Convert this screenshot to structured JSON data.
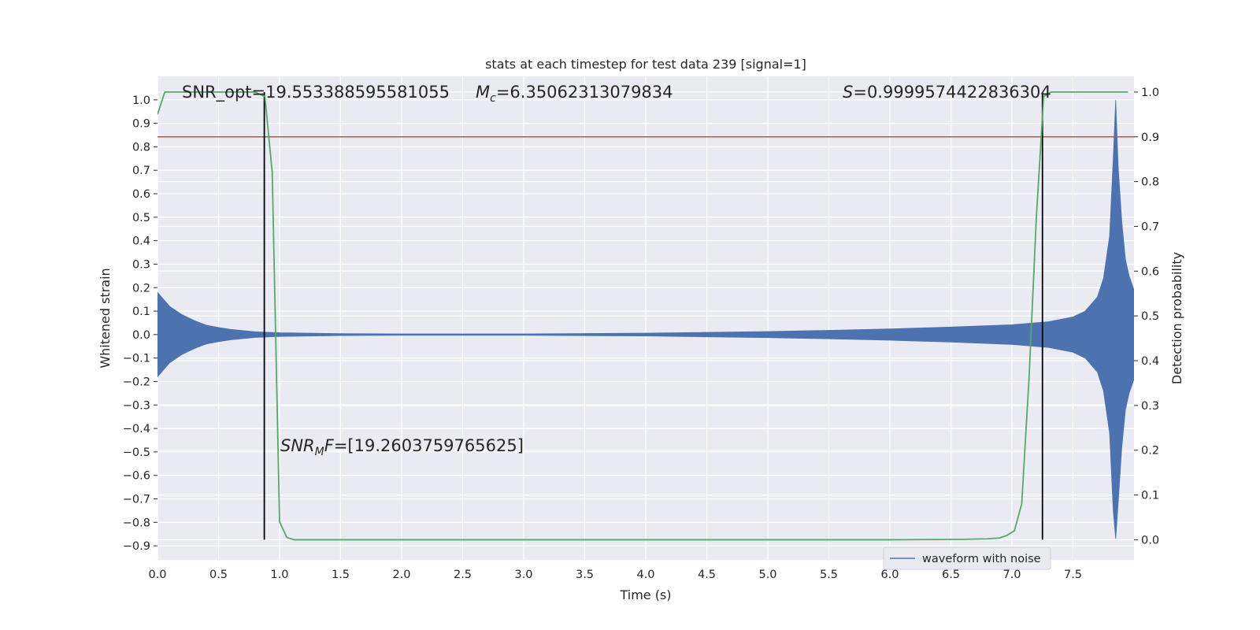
{
  "chart_data": {
    "type": "line",
    "title": "stats at each timestep for test data 239 [signal=1]",
    "xlabel": "Time (s)",
    "ylabel": "Whitened strain",
    "y2label": "Detection probability",
    "xlim": [
      0.0,
      8.0
    ],
    "ylim": [
      -0.96,
      1.1
    ],
    "y2lim": [
      -0.045,
      1.035
    ],
    "xticks": [
      "0.0",
      "0.5",
      "1.0",
      "1.5",
      "2.0",
      "2.5",
      "3.0",
      "3.5",
      "4.0",
      "4.5",
      "5.0",
      "5.5",
      "6.0",
      "6.5",
      "7.0",
      "7.5"
    ],
    "yticks": [
      "1.0",
      "0.9",
      "0.8",
      "0.7",
      "0.6",
      "0.5",
      "0.4",
      "0.3",
      "0.2",
      "0.1",
      "0.0",
      "−0.1",
      "−0.2",
      "−0.3",
      "−0.4",
      "−0.5",
      "−0.6",
      "−0.7",
      "−0.8",
      "−0.9"
    ],
    "y2ticks": [
      "0.0",
      "0.1",
      "0.2",
      "0.3",
      "0.4",
      "0.5",
      "0.6",
      "0.7",
      "0.8",
      "0.9",
      "1.0"
    ],
    "grid": true,
    "legend_position": "lower-right",
    "series": [
      {
        "name": "waveform with noise",
        "kind": "oscillating-envelope",
        "color": "#4c72b0",
        "envelope": {
          "x": [
            0.0,
            0.1,
            0.2,
            0.3,
            0.4,
            0.5,
            0.6,
            0.8,
            1.0,
            1.5,
            2.0,
            3.0,
            4.0,
            5.0,
            5.5,
            6.0,
            6.5,
            7.0,
            7.3,
            7.5,
            7.6,
            7.7,
            7.75,
            7.8,
            7.83,
            7.85,
            7.87,
            7.9,
            7.93,
            7.96,
            8.0
          ],
          "upper": [
            0.18,
            0.12,
            0.085,
            0.06,
            0.04,
            0.03,
            0.022,
            0.012,
            0.008,
            0.004,
            0.003,
            0.003,
            0.006,
            0.013,
            0.018,
            0.024,
            0.032,
            0.042,
            0.055,
            0.075,
            0.1,
            0.16,
            0.24,
            0.42,
            0.75,
            1.0,
            0.72,
            0.48,
            0.32,
            0.25,
            0.19
          ],
          "lower": [
            -0.18,
            -0.12,
            -0.085,
            -0.06,
            -0.04,
            -0.03,
            -0.022,
            -0.012,
            -0.008,
            -0.004,
            -0.003,
            -0.003,
            -0.006,
            -0.013,
            -0.018,
            -0.024,
            -0.032,
            -0.042,
            -0.055,
            -0.075,
            -0.1,
            -0.16,
            -0.24,
            -0.42,
            -0.75,
            -0.87,
            -0.72,
            -0.48,
            -0.32,
            -0.25,
            -0.19
          ]
        }
      },
      {
        "name": "detection probability",
        "axis": "right",
        "color": "#55a868",
        "x": [
          0.0,
          0.06,
          0.12,
          0.2,
          0.5,
          0.8,
          0.88,
          0.94,
          1.0,
          1.06,
          1.12,
          1.2,
          2.0,
          4.0,
          6.0,
          6.6,
          6.8,
          6.9,
          6.96,
          7.02,
          7.08,
          7.14,
          7.2,
          7.26,
          7.32,
          7.38,
          7.5,
          7.8,
          7.95
        ],
        "y": [
          0.95,
          1.0,
          1.0,
          1.0,
          1.0,
          1.0,
          0.99,
          0.82,
          0.04,
          0.005,
          0.0,
          0.0,
          0.0,
          0.0,
          0.0,
          0.001,
          0.002,
          0.004,
          0.01,
          0.02,
          0.08,
          0.36,
          0.72,
          0.99,
          1.0,
          1.0,
          1.0,
          1.0,
          1.0
        ]
      }
    ],
    "hlines": [
      {
        "y2": 0.9,
        "color": "#c44e52"
      }
    ],
    "vlines": [
      {
        "x": 0.875,
        "color": "#000000"
      },
      {
        "x": 7.25,
        "color": "#000000"
      }
    ],
    "annotations": {
      "snr_opt": "SNR_opt=19.553388595581055",
      "mc_symbol": "M",
      "mc_sub": "c",
      "mc_value": "=6.35062313079834",
      "s_symbol": "S",
      "s_value": "=0.9999574422836304",
      "snr_mf_symbol": "SNR",
      "snr_mf_sub": "M",
      "snr_mf_f": "F",
      "snr_mf_value": "=[19.2603759765625]"
    }
  }
}
